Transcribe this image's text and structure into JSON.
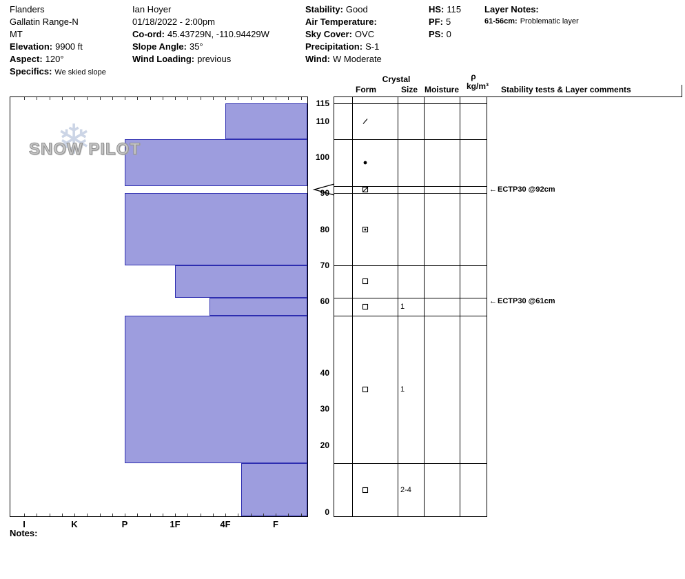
{
  "header": {
    "site": {
      "name": "Flanders",
      "range": "Gallatin Range-N",
      "state": "MT",
      "elevation_label": "Elevation:",
      "elevation_value": "9900 ft",
      "aspect_label": "Aspect:",
      "aspect_value": "120°",
      "specifics_label": "Specifics:",
      "specifics_value": "We skied slope"
    },
    "observer": {
      "name": "Ian Hoyer",
      "datetime": "01/18/2022 - 2:00pm",
      "coord_label": "Co-ord:",
      "coord_value": "45.43729N, -110.94429W",
      "slope_label": "Slope Angle:",
      "slope_value": "35°",
      "windload_label": "Wind Loading:",
      "windload_value": "previous"
    },
    "conditions": {
      "stability_label": "Stability:",
      "stability_value": "Good",
      "airtemp_label": "Air Temperature:",
      "airtemp_value": "",
      "sky_label": "Sky Cover:",
      "sky_value": "OVC",
      "precip_label": "Precipitation:",
      "precip_value": "S-1",
      "wind_label": "Wind:",
      "wind_value": "W Moderate"
    },
    "totals": {
      "hs_label": "HS:",
      "hs_value": "115",
      "pf_label": "PF:",
      "pf_value": "5",
      "ps_label": "PS:",
      "ps_value": "0"
    },
    "layer_notes": {
      "title": "Layer Notes:",
      "entry_depth": "61-56cm:",
      "entry_text": "Problematic layer"
    }
  },
  "logo": {
    "text": "SNOW PILOT",
    "snowflake": "❄",
    "text_color": "#c6c6c6"
  },
  "columns": {
    "crystal": "Crystal",
    "form": "Form",
    "size": "Size",
    "moisture": "Moisture",
    "rho": "ρ",
    "rho_units": "kg/m³",
    "stability": "Stability tests & Layer comments"
  },
  "notes_label": "Notes:",
  "chart_data": {
    "type": "bar",
    "subtype": "snow-pit-hardness-profile",
    "title": "Snow profile, total height HS 115 cm, hardness vs depth",
    "hardness_scale": [
      "I",
      "K",
      "P",
      "1F",
      "4F",
      "F"
    ],
    "depth_ticks": [
      115,
      110,
      100,
      90,
      80,
      70,
      60,
      40,
      30,
      20,
      0
    ],
    "total_depth_cm": 115,
    "ylim": [
      0,
      115
    ],
    "bar_fill": "#9d9dde",
    "bar_border": "#2d2db0",
    "layers": [
      {
        "top": 115,
        "bottom": 105,
        "hardness": "4F",
        "hardness_value": 4,
        "form_symbol": "slash",
        "size": ""
      },
      {
        "top": 105,
        "bottom": 92,
        "hardness": "P",
        "hardness_value": 2,
        "form_symbol": "dot",
        "size": ""
      },
      {
        "top": 92,
        "bottom": 90,
        "hardness": null,
        "hardness_value": null,
        "form_symbol": "square-slash",
        "size": ""
      },
      {
        "top": 90,
        "bottom": 70,
        "hardness": "P",
        "hardness_value": 2,
        "form_symbol": "square-dot",
        "size": ""
      },
      {
        "top": 70,
        "bottom": 61,
        "hardness": "1F",
        "hardness_value": 3,
        "form_symbol": "square",
        "size": ""
      },
      {
        "top": 61,
        "bottom": 56,
        "hardness": "4F+",
        "hardness_value": 3.68,
        "form_symbol": "square",
        "size": "1"
      },
      {
        "top": 56,
        "bottom": 15,
        "hardness": "P",
        "hardness_value": 2,
        "form_symbol": "square",
        "size": "1"
      },
      {
        "top": 15,
        "bottom": 0,
        "hardness": "4F-",
        "hardness_value": 4.31,
        "form_symbol": "square",
        "size": "2-4"
      }
    ],
    "tests": [
      {
        "depth_cm": 92,
        "label": "ECTP30 @92cm",
        "flag": true
      },
      {
        "depth_cm": 61,
        "label": "ECTP30 @61cm",
        "flag": false
      }
    ]
  }
}
